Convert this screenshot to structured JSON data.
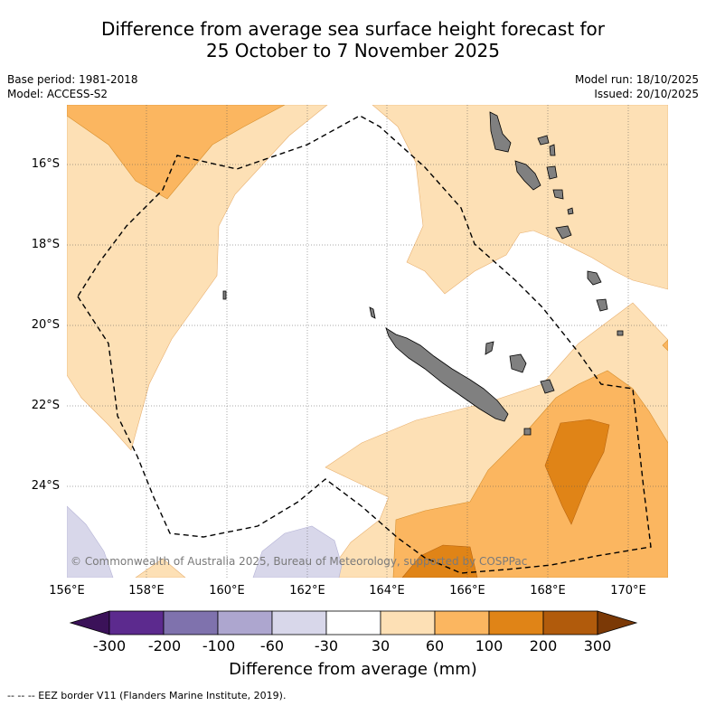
{
  "header": {
    "title_line1": "Difference from average sea surface height forecast for",
    "title_line2": "25 October to 7 November 2025",
    "base_period": "Base period: 1981-2018",
    "model": "Model: ACCESS-S2",
    "model_run": "Model run: 18/10/2025",
    "issued": "Issued: 20/10/2025"
  },
  "map": {
    "lon_labels": [
      "156°E",
      "158°E",
      "160°E",
      "162°E",
      "164°E",
      "166°E",
      "168°E",
      "170°E"
    ],
    "lat_labels": [
      "16°S",
      "18°S",
      "20°S",
      "22°S",
      "24°S"
    ],
    "copyright": "© Commonwealth of Australia 2025, Bureau of Meteorology, supported by COSPPac",
    "colors": {
      "land": "#808080",
      "coast": "#000000",
      "grid": "#555555"
    }
  },
  "colorbar": {
    "ticks": [
      "-300",
      "-200",
      "-100",
      "-60",
      "-30",
      "30",
      "60",
      "100",
      "200",
      "300"
    ],
    "colors": [
      "#3b1259",
      "#5c2a8e",
      "#7f72ad",
      "#ada6cf",
      "#d8d7ea",
      "#ffffff",
      "#fde0b5",
      "#fbb660",
      "#e08417",
      "#b15b0c",
      "#7b3906"
    ],
    "title": "Difference from average (mm)"
  },
  "legend": {
    "eez": "--  --  -- EEZ border V11 (Flanders Marine Institute, 2019)."
  }
}
